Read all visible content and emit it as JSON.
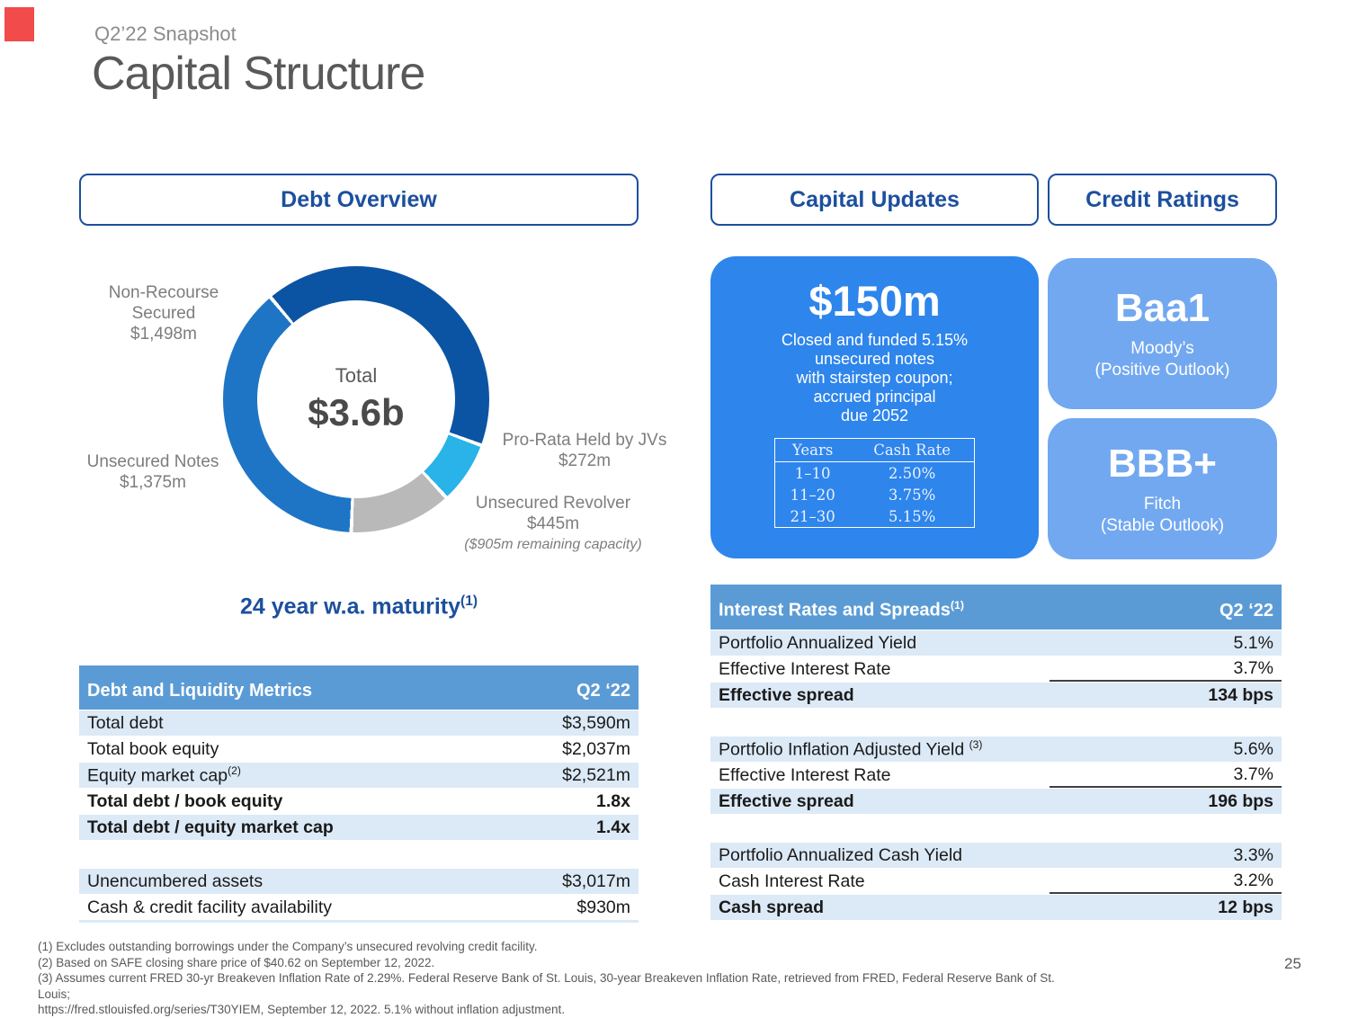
{
  "slide": {
    "eyebrow": "Q2’22 Snapshot",
    "title": "Capital Structure",
    "page_number": "25"
  },
  "headers": {
    "debt_overview": "Debt Overview",
    "capital_updates": "Capital Updates",
    "credit_ratings": "Credit Ratings"
  },
  "chart_data": {
    "type": "pie",
    "variant": "donut",
    "title": "Debt Overview",
    "center_label": "Total",
    "center_value": "$3.6b",
    "total_millions": 3590,
    "start_angle_deg": -40,
    "segment_gap_deg": 1.6,
    "segments": [
      {
        "label": "Non-Recourse Secured",
        "value": 1498,
        "value_label": "$1,498m",
        "color": "#0b54a4"
      },
      {
        "label": "Pro-Rata Held by JVs",
        "value": 272,
        "value_label": "$272m",
        "color": "#29b3e8"
      },
      {
        "label": "Unsecured Revolver",
        "value": 445,
        "value_label": "$445m",
        "note": "($905m remaining capacity)",
        "color": "#b9b9b9"
      },
      {
        "label": "Unsecured Notes",
        "value": 1375,
        "value_label": "$1,375m",
        "color": "#1e75c5"
      }
    ]
  },
  "maturity": {
    "text": "24 year w.a. maturity",
    "sup": "(1)"
  },
  "debt_table": {
    "title": "Debt and Liquidity Metrics",
    "period": "Q2 ‘22",
    "rows": [
      {
        "label": "Total debt",
        "value": "$3,590m"
      },
      {
        "label": "Total book equity",
        "value": "$2,037m"
      },
      {
        "label": "Equity market cap",
        "sup": "(2)",
        "value": "$2,521m"
      },
      {
        "label": "Total debt / book equity",
        "value": "1.8x"
      },
      {
        "label": "Total debt / equity market cap",
        "value": "1.4x"
      },
      {
        "label": "",
        "value": ""
      },
      {
        "label": "Unencumbered assets",
        "value": "$3,017m"
      },
      {
        "label": "Cash & credit facility availability",
        "value": "$930m"
      }
    ]
  },
  "capital_update": {
    "amount": "$150m",
    "description_lines": [
      "Closed and funded 5.15%",
      "unsecured notes",
      "with stairstep coupon;",
      "accrued principal",
      "due 2052"
    ],
    "rate_table": {
      "col1": "Years",
      "col2": "Cash Rate",
      "rows": [
        [
          "1–10",
          "2.50%"
        ],
        [
          "11–20",
          "3.75%"
        ],
        [
          "21–30",
          "5.15%"
        ]
      ]
    }
  },
  "credit_ratings": [
    {
      "rating": "Baa1",
      "agency": "Moody’s",
      "outlook": "(Positive Outlook)"
    },
    {
      "rating": "BBB+",
      "agency": "Fitch",
      "outlook": "(Stable Outlook)"
    }
  ],
  "rates_table": {
    "title": "Interest Rates and Spreads",
    "title_sup": "(1)",
    "period": "Q2 ‘22",
    "rows": [
      {
        "label": "Portfolio Annualized Yield",
        "value": "5.1%"
      },
      {
        "label": "Effective Interest Rate",
        "value": "3.7%"
      },
      {
        "label": "Effective spread",
        "value": "134 bps"
      },
      {
        "label": "",
        "value": ""
      },
      {
        "label": "Portfolio Inflation Adjusted Yield",
        "sup": "(3)",
        "value": "5.6%"
      },
      {
        "label": "Effective Interest Rate",
        "value": "3.7%"
      },
      {
        "label": "Effective spread",
        "value": "196 bps"
      },
      {
        "label": "",
        "value": ""
      },
      {
        "label": "Portfolio Annualized Cash Yield",
        "value": "3.3%"
      },
      {
        "label": "Cash Interest Rate",
        "value": "3.2%"
      },
      {
        "label": "Cash spread",
        "value": "12 bps"
      }
    ]
  },
  "footnotes": [
    "(1) Excludes outstanding borrowings under the Company’s unsecured revolving credit facility.",
    "(2) Based on SAFE closing share price of $40.62 on September 12, 2022.",
    "(3) Assumes current FRED 30-yr Breakeven Inflation Rate of 2.29%. Federal Reserve Bank of St. Louis, 30-year Breakeven Inflation Rate, retrieved from FRED, Federal Reserve Bank of St. Louis;",
    "https://fred.stlouisfed.org/series/T30YIEM, September 12, 2022. 5.1% without inflation adjustment."
  ],
  "colors": {
    "accent_navy": "#1c4f9e",
    "table_header_bg": "#5b9bd5",
    "table_row_light": "#dce9f6",
    "capital_box_blue": "#2e85ec",
    "rating_box_blue": "#72a8f0",
    "donut_dark_blue": "#0b54a4",
    "donut_medium_blue": "#1e75c5",
    "donut_cyan": "#29b3e8",
    "donut_gray": "#b9b9b9",
    "title_gray": "#595959",
    "red_mark": "#ee2b2b"
  }
}
